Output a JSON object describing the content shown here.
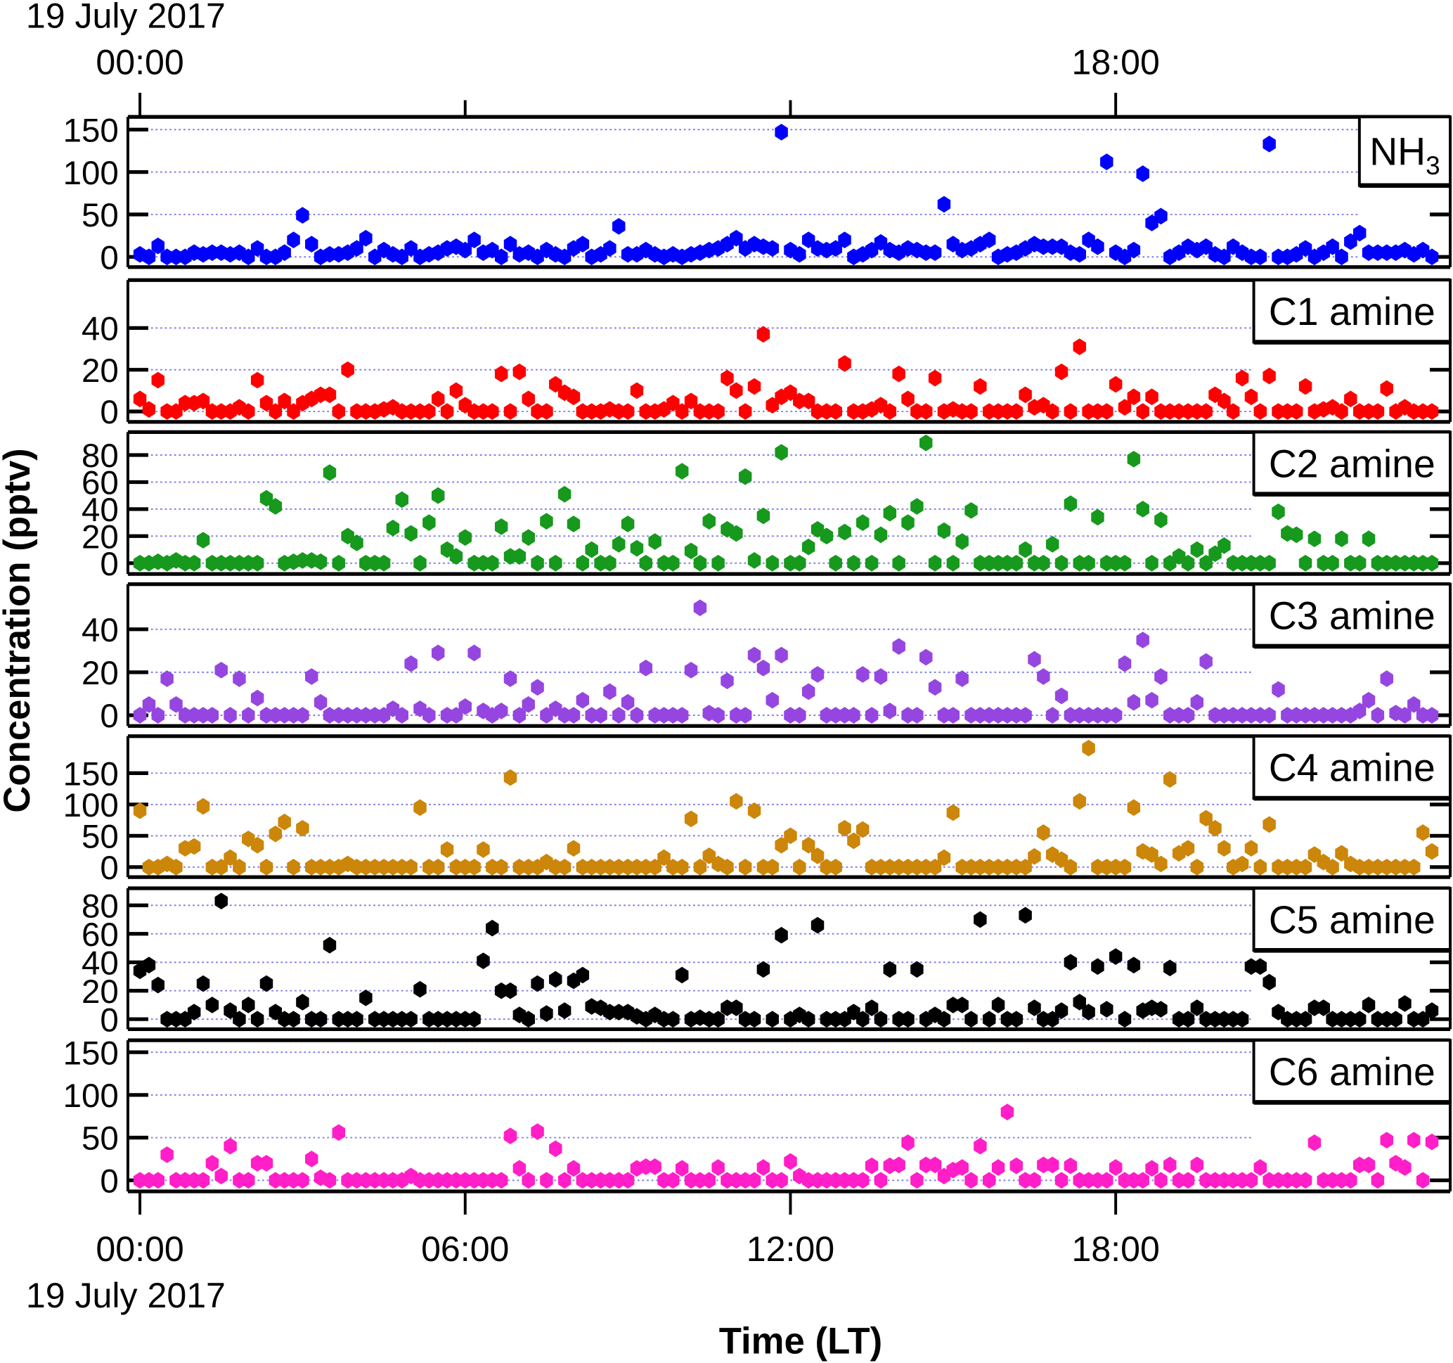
{
  "chart_data": {
    "type": "scatter",
    "xlabel": "Time (LT)",
    "ylabel": "Concentration (pptv)",
    "date_label": "19 July 2017",
    "x_ticks": [
      "00:00",
      "06:00",
      "12:00",
      "18:00"
    ],
    "top_x_ticks": [
      "00:00",
      "",
      "",
      "18:00"
    ],
    "xlim": [
      "00:00",
      "24:10"
    ],
    "grid": "horizontal dotted",
    "x": [
      "00:00",
      "00:10",
      "00:20",
      "00:30",
      "00:40",
      "00:50",
      "01:00",
      "01:10",
      "01:20",
      "01:30",
      "01:40",
      "01:50",
      "02:00",
      "02:10",
      "02:20",
      "02:30",
      "02:40",
      "02:50",
      "03:00",
      "03:10",
      "03:20",
      "03:30",
      "03:40",
      "03:50",
      "04:00",
      "04:10",
      "04:20",
      "04:30",
      "04:40",
      "04:50",
      "05:00",
      "05:10",
      "05:20",
      "05:30",
      "05:40",
      "05:50",
      "06:00",
      "06:10",
      "06:20",
      "06:30",
      "06:40",
      "06:50",
      "07:00",
      "07:10",
      "07:20",
      "07:30",
      "07:40",
      "07:50",
      "08:00",
      "08:10",
      "08:20",
      "08:30",
      "08:40",
      "08:50",
      "09:00",
      "09:10",
      "09:20",
      "09:30",
      "09:40",
      "09:50",
      "10:00",
      "10:10",
      "10:20",
      "10:30",
      "10:40",
      "10:50",
      "11:00",
      "11:10",
      "11:20",
      "11:30",
      "11:40",
      "11:50",
      "12:00",
      "12:10",
      "12:20",
      "12:30",
      "12:40",
      "12:50",
      "13:00",
      "13:10",
      "13:20",
      "13:30",
      "13:40",
      "13:50",
      "14:00",
      "14:10",
      "14:20",
      "14:30",
      "14:40",
      "14:50",
      "15:00",
      "15:10",
      "15:20",
      "15:30",
      "15:40",
      "15:50",
      "16:00",
      "16:10",
      "16:20",
      "16:30",
      "16:40",
      "16:50",
      "17:00",
      "17:10",
      "17:20",
      "17:30",
      "17:40",
      "17:50",
      "18:00",
      "18:10",
      "18:20",
      "18:30",
      "18:40",
      "18:50",
      "19:00",
      "19:10",
      "19:20",
      "19:30",
      "19:40",
      "19:50",
      "20:00",
      "20:10",
      "20:20",
      "20:30",
      "20:40",
      "20:50",
      "21:00",
      "21:10",
      "21:20",
      "21:30",
      "21:40",
      "21:50",
      "22:00",
      "22:10",
      "22:20",
      "22:30",
      "22:40",
      "22:50",
      "23:00",
      "23:10",
      "23:20",
      "23:30",
      "23:40",
      "23:50"
    ],
    "panels": [
      {
        "label": "NH",
        "label_sub": "3",
        "color": "#0000ff",
        "ylim": [
          -12,
          165
        ],
        "yticks": [
          0,
          50,
          100,
          150
        ],
        "values": [
          3,
          0,
          13,
          0,
          0,
          0,
          5,
          3,
          5,
          5,
          3,
          5,
          0,
          10,
          0,
          0,
          5,
          20,
          49,
          15,
          0,
          3,
          3,
          5,
          10,
          22,
          0,
          8,
          3,
          0,
          10,
          0,
          3,
          5,
          10,
          12,
          8,
          20,
          5,
          8,
          0,
          15,
          3,
          5,
          0,
          8,
          3,
          0,
          10,
          15,
          0,
          3,
          10,
          36,
          3,
          3,
          8,
          3,
          0,
          3,
          0,
          3,
          5,
          8,
          10,
          15,
          22,
          10,
          15,
          12,
          10,
          147,
          8,
          3,
          20,
          10,
          8,
          10,
          20,
          0,
          3,
          8,
          17,
          8,
          5,
          10,
          8,
          5,
          5,
          62,
          15,
          8,
          10,
          15,
          20,
          0,
          3,
          5,
          10,
          15,
          12,
          12,
          12,
          5,
          3,
          20,
          12,
          112,
          5,
          0,
          8,
          98,
          40,
          48,
          0,
          5,
          12,
          8,
          12,
          3,
          0,
          12,
          5,
          0,
          0,
          133,
          0,
          0,
          3,
          10,
          0,
          5,
          12,
          0,
          18,
          28,
          5,
          5,
          5,
          5,
          8,
          3,
          8,
          0
        ]
      },
      {
        "label": "C1 amine",
        "label_sub": "",
        "color": "#ff0000",
        "ylim": [
          -5,
          63
        ],
        "yticks": [
          0,
          20,
          40
        ],
        "values": [
          6,
          1,
          15,
          0,
          0,
          4,
          4,
          5,
          0,
          0,
          0,
          2,
          0,
          15,
          4,
          0,
          5,
          0,
          4,
          6,
          8,
          8,
          0,
          20,
          0,
          0,
          0,
          1,
          2,
          0,
          0,
          0,
          0,
          6,
          0,
          10,
          3,
          0,
          0,
          0,
          18,
          0,
          19,
          6,
          0,
          0,
          13,
          9,
          7,
          0,
          0,
          0,
          1,
          0,
          0,
          10,
          0,
          0,
          1,
          4,
          0,
          5,
          0,
          0,
          0,
          16,
          10,
          0,
          12,
          37,
          3,
          7,
          9,
          5,
          5,
          0,
          0,
          0,
          23,
          0,
          0,
          1,
          3,
          0,
          18,
          6,
          0,
          0,
          16,
          0,
          1,
          0,
          0,
          12,
          0,
          0,
          0,
          0,
          8,
          2,
          3,
          0,
          19,
          0,
          31,
          0,
          0,
          0,
          13,
          2,
          7,
          0,
          7,
          0,
          0,
          0,
          0,
          0,
          0,
          8,
          5,
          0,
          16,
          7,
          0,
          17,
          0,
          0,
          0,
          12,
          0,
          1,
          2,
          0,
          6,
          0,
          0,
          0,
          11,
          0,
          2,
          0,
          0,
          0
        ]
      },
      {
        "label": "C2 amine",
        "label_sub": "",
        "color": "#16991c",
        "ylim": [
          -8,
          97
        ],
        "yticks": [
          0,
          20,
          40,
          60,
          80
        ],
        "values": [
          0,
          0,
          1,
          0,
          2,
          0,
          0,
          17,
          0,
          0,
          0,
          0,
          0,
          0,
          48,
          42,
          0,
          1,
          2,
          2,
          1,
          67,
          0,
          20,
          15,
          0,
          0,
          0,
          26,
          47,
          22,
          0,
          30,
          50,
          10,
          5,
          19,
          0,
          0,
          0,
          27,
          5,
          5,
          19,
          0,
          31,
          0,
          51,
          29,
          0,
          10,
          0,
          0,
          14,
          29,
          11,
          0,
          16,
          0,
          0,
          68,
          9,
          0,
          31,
          0,
          25,
          22,
          64,
          2,
          35,
          0,
          82,
          0,
          0,
          12,
          25,
          20,
          0,
          23,
          0,
          30,
          0,
          21,
          37,
          0,
          30,
          42,
          89,
          0,
          24,
          0,
          16,
          39,
          0,
          0,
          0,
          0,
          0,
          10,
          0,
          0,
          14,
          0,
          44,
          0,
          0,
          34,
          0,
          0,
          0,
          77,
          40,
          0,
          32,
          0,
          5,
          0,
          10,
          0,
          7,
          13,
          0,
          0,
          0,
          0,
          0,
          38,
          22,
          21,
          0,
          18,
          0,
          0,
          18,
          0,
          0,
          18,
          0,
          0,
          0,
          0,
          0,
          0,
          0
        ]
      },
      {
        "label": "C3 amine",
        "label_sub": "",
        "color": "#9646e0",
        "ylim": [
          -5,
          61
        ],
        "yticks": [
          0,
          20,
          40
        ],
        "values": [
          0,
          5,
          0,
          17,
          5,
          0,
          0,
          0,
          0,
          21,
          0,
          17,
          0,
          8,
          0,
          0,
          0,
          0,
          0,
          18,
          6,
          0,
          0,
          0,
          0,
          0,
          0,
          0,
          3,
          0,
          24,
          3,
          0,
          29,
          0,
          0,
          4,
          29,
          2,
          0,
          2,
          17,
          0,
          5,
          13,
          0,
          3,
          0,
          0,
          7,
          0,
          0,
          11,
          0,
          6,
          0,
          22,
          0,
          0,
          0,
          0,
          21,
          50,
          1,
          0,
          16,
          0,
          0,
          28,
          22,
          7,
          28,
          0,
          0,
          11,
          19,
          0,
          0,
          0,
          0,
          19,
          0,
          18,
          2,
          32,
          0,
          0,
          27,
          13,
          0,
          0,
          17,
          0,
          0,
          0,
          0,
          0,
          0,
          0,
          26,
          18,
          0,
          9,
          0,
          0,
          0,
          0,
          0,
          0,
          24,
          6,
          35,
          7,
          18,
          0,
          0,
          0,
          6,
          25,
          0,
          0,
          0,
          0,
          0,
          0,
          0,
          12,
          0,
          0,
          0,
          0,
          0,
          0,
          0,
          0,
          2,
          7,
          0,
          17,
          1,
          0,
          5,
          0,
          0
        ]
      },
      {
        "label": "C4 amine",
        "label_sub": "",
        "color": "#cc860a",
        "ylim": [
          -16,
          209
        ],
        "yticks": [
          0,
          50,
          100,
          150
        ],
        "values": [
          90,
          0,
          0,
          5,
          0,
          30,
          33,
          97,
          0,
          0,
          15,
          0,
          45,
          35,
          0,
          53,
          72,
          0,
          62,
          0,
          0,
          0,
          0,
          5,
          0,
          0,
          0,
          0,
          0,
          0,
          0,
          95,
          0,
          0,
          28,
          0,
          0,
          0,
          28,
          0,
          0,
          143,
          0,
          0,
          0,
          8,
          0,
          0,
          30,
          0,
          0,
          0,
          0,
          0,
          0,
          0,
          0,
          0,
          15,
          0,
          0,
          77,
          0,
          18,
          5,
          0,
          105,
          0,
          90,
          0,
          0,
          35,
          50,
          0,
          35,
          18,
          0,
          0,
          62,
          42,
          60,
          0,
          0,
          0,
          0,
          0,
          0,
          0,
          0,
          15,
          87,
          0,
          0,
          0,
          0,
          0,
          0,
          0,
          0,
          17,
          55,
          20,
          12,
          0,
          105,
          190,
          0,
          0,
          0,
          0,
          95,
          25,
          20,
          5,
          140,
          22,
          30,
          0,
          78,
          62,
          30,
          0,
          5,
          30,
          0,
          68,
          0,
          0,
          0,
          0,
          20,
          8,
          0,
          22,
          5,
          0,
          0,
          0,
          0,
          0,
          0,
          0,
          55,
          25
        ]
      },
      {
        "label": "C5 amine",
        "label_sub": "",
        "color": "#000000",
        "ylim": [
          -7,
          92
        ],
        "yticks": [
          0,
          20,
          40,
          60,
          80
        ],
        "values": [
          34,
          38,
          24,
          0,
          0,
          0,
          5,
          25,
          10,
          83,
          6,
          0,
          10,
          0,
          25,
          5,
          0,
          0,
          12,
          0,
          0,
          52,
          0,
          0,
          0,
          15,
          0,
          0,
          0,
          0,
          0,
          21,
          0,
          0,
          0,
          0,
          0,
          0,
          41,
          64,
          20,
          20,
          3,
          0,
          25,
          4,
          28,
          6,
          27,
          31,
          9,
          8,
          5,
          5,
          5,
          2,
          0,
          3,
          0,
          0,
          31,
          0,
          1,
          0,
          0,
          8,
          8,
          0,
          0,
          35,
          0,
          59,
          0,
          3,
          0,
          66,
          0,
          0,
          0,
          5,
          0,
          8,
          0,
          35,
          0,
          0,
          35,
          0,
          3,
          0,
          10,
          10,
          0,
          70,
          0,
          10,
          0,
          0,
          73,
          8,
          0,
          0,
          6,
          40,
          12,
          5,
          37,
          7,
          44,
          0,
          38,
          6,
          8,
          7,
          36,
          0,
          0,
          8,
          0,
          0,
          0,
          0,
          0,
          37,
          37,
          26,
          5,
          0,
          0,
          0,
          8,
          8,
          0,
          0,
          0,
          0,
          10,
          0,
          0,
          0,
          11,
          0,
          0,
          6
        ]
      },
      {
        "label": "C6 amine",
        "label_sub": "",
        "color": "#ff1ec8",
        "ylim": [
          -13,
          164
        ],
        "yticks": [
          0,
          50,
          100,
          150
        ],
        "values": [
          0,
          0,
          0,
          30,
          0,
          0,
          0,
          0,
          20,
          5,
          40,
          0,
          0,
          20,
          20,
          0,
          0,
          0,
          0,
          25,
          3,
          0,
          56,
          0,
          0,
          0,
          0,
          0,
          0,
          0,
          5,
          0,
          0,
          0,
          0,
          0,
          0,
          0,
          0,
          0,
          0,
          52,
          14,
          0,
          57,
          0,
          37,
          0,
          14,
          0,
          0,
          0,
          0,
          0,
          0,
          14,
          16,
          16,
          0,
          0,
          14,
          0,
          0,
          0,
          15,
          0,
          0,
          0,
          0,
          15,
          0,
          0,
          22,
          5,
          0,
          0,
          0,
          0,
          0,
          0,
          0,
          17,
          0,
          17,
          18,
          44,
          0,
          18,
          18,
          5,
          12,
          15,
          0,
          40,
          0,
          15,
          80,
          17,
          0,
          0,
          18,
          18,
          0,
          17,
          0,
          0,
          0,
          0,
          15,
          0,
          0,
          0,
          14,
          0,
          18,
          0,
          0,
          18,
          0,
          0,
          0,
          0,
          0,
          0,
          15,
          0,
          0,
          0,
          0,
          0,
          44,
          0,
          0,
          0,
          0,
          18,
          18,
          0,
          47,
          20,
          15,
          47,
          0,
          45
        ]
      }
    ]
  }
}
